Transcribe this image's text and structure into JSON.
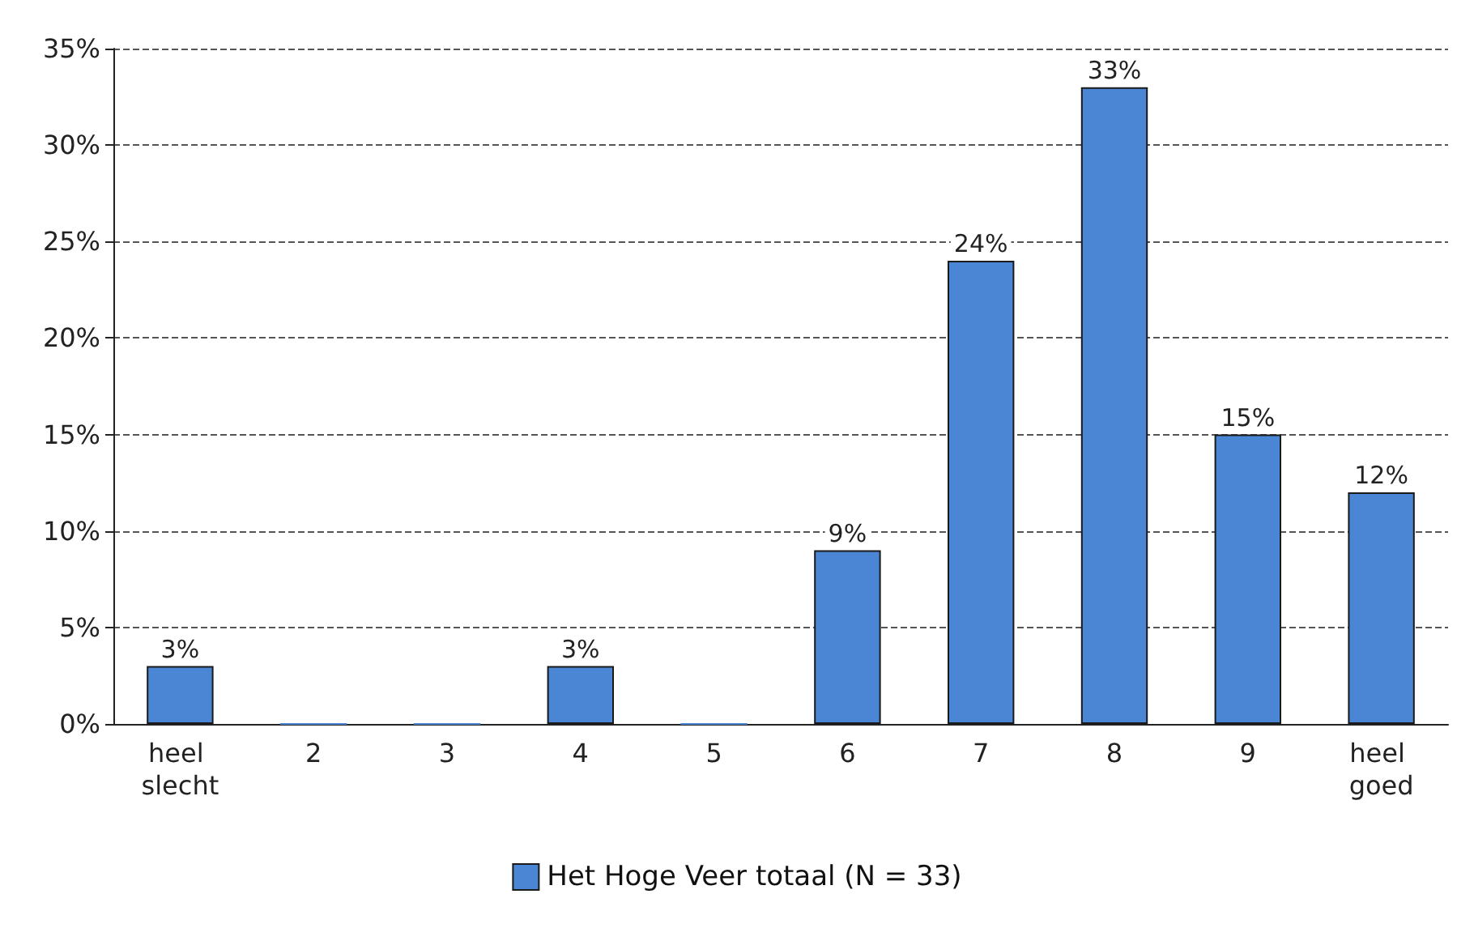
{
  "chart_data": {
    "type": "bar",
    "categories": [
      "heel slecht",
      "2",
      "3",
      "4",
      "5",
      "6",
      "7",
      "8",
      "9",
      "heel goed"
    ],
    "series": [
      {
        "name": "Het Hoge Veer totaal (N = 33)",
        "color": "#4a86d3",
        "values": [
          3,
          0,
          0,
          3,
          0,
          9,
          24,
          33,
          15,
          12
        ],
        "value_labels": [
          "3%",
          null,
          null,
          "3%",
          null,
          "9%",
          "24%",
          "33%",
          "15%",
          "12%"
        ]
      }
    ],
    "ylim": [
      0,
      35
    ],
    "yticks": [
      {
        "value": 0,
        "label": "0%"
      },
      {
        "value": 5,
        "label": "5%"
      },
      {
        "value": 10,
        "label": "10%"
      },
      {
        "value": 15,
        "label": "15%"
      },
      {
        "value": 20,
        "label": "20%"
      },
      {
        "value": 25,
        "label": "25%"
      },
      {
        "value": 30,
        "label": "30%"
      },
      {
        "value": 35,
        "label": "35%"
      }
    ],
    "grid": "y",
    "legend": "bottom"
  }
}
